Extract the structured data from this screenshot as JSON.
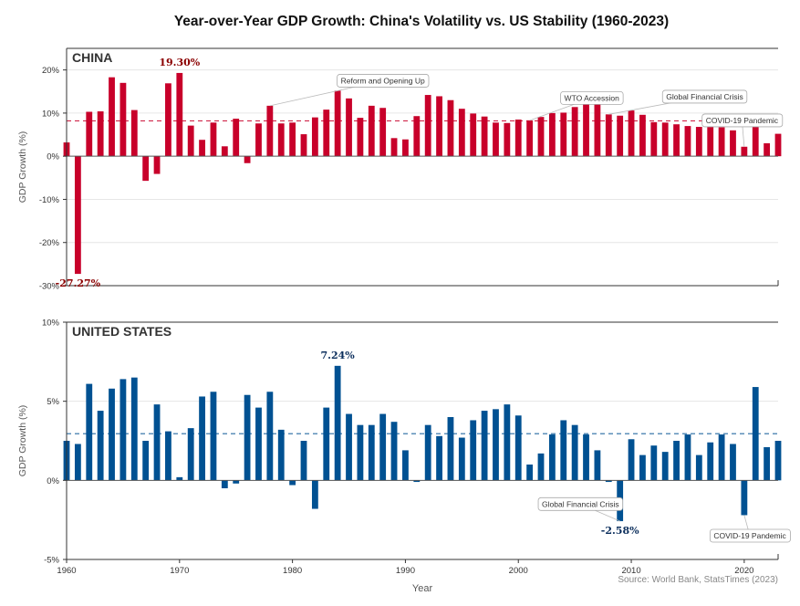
{
  "page_title": "Year-over-Year GDP Growth: China's Volatility vs. US Stability (1960-2023)",
  "source_note": "Source: World Bank, StatsTimes (2023)",
  "colors": {
    "china": "#C8002A",
    "us": "#005192",
    "grid": "#e6e6e6",
    "axis": "#333333"
  },
  "chart_data": [
    {
      "type": "bar",
      "panel_label": "CHINA",
      "ylabel": "GDP Growth (%)",
      "xlabel": "",
      "ylim": [
        -30,
        25
      ],
      "yticks": [
        -30,
        -20,
        -10,
        0,
        10,
        20
      ],
      "ytick_labels": [
        "-30%",
        "-20%",
        "-10%",
        "0%",
        "10%",
        "20%"
      ],
      "x_range": [
        1960,
        2023
      ],
      "grid": true,
      "mean_line": 8.2,
      "series": [
        {
          "x": [
            1960,
            1961,
            1962,
            1963,
            1964,
            1965,
            1966,
            1967,
            1968,
            1969,
            1970,
            1971,
            1972,
            1973,
            1974,
            1975,
            1976,
            1977,
            1978,
            1979,
            1980,
            1981,
            1982,
            1983,
            1984,
            1985,
            1986,
            1987,
            1988,
            1989,
            1990,
            1991,
            1992,
            1993,
            1994,
            1995,
            1996,
            1997,
            1998,
            1999,
            2000,
            2001,
            2002,
            2003,
            2004,
            2005,
            2006,
            2007,
            2008,
            2009,
            2010,
            2011,
            2012,
            2013,
            2014,
            2015,
            2016,
            2017,
            2018,
            2019,
            2020,
            2021,
            2022,
            2023
          ],
          "values": [
            3.2,
            -27.27,
            10.3,
            10.4,
            18.3,
            17.0,
            10.7,
            -5.7,
            -4.1,
            16.9,
            19.3,
            7.1,
            3.8,
            7.8,
            2.3,
            8.7,
            -1.6,
            7.6,
            11.7,
            7.6,
            7.8,
            5.1,
            9.0,
            10.8,
            15.2,
            13.4,
            8.9,
            11.7,
            11.2,
            4.2,
            3.9,
            9.3,
            14.2,
            13.9,
            13.0,
            11.0,
            9.9,
            9.2,
            7.8,
            7.7,
            8.5,
            8.3,
            9.1,
            10.0,
            10.1,
            11.4,
            12.7,
            14.2,
            9.7,
            9.4,
            10.6,
            9.6,
            7.9,
            7.8,
            7.4,
            7.0,
            6.8,
            6.9,
            6.7,
            6.0,
            2.2,
            8.4,
            3.0,
            5.2
          ]
        }
      ],
      "data_labels": [
        {
          "x": 1970,
          "text": "19.30%"
        },
        {
          "x": 1961,
          "text": "-27.27%"
        }
      ],
      "annotations": [
        {
          "text": "Reform and Opening Up",
          "x": 1978,
          "y": 11.7,
          "box_x": 1988,
          "box_y": 17.5
        },
        {
          "text": "WTO Accession",
          "x": 2001,
          "y": 8.3,
          "box_x": 2006.5,
          "box_y": 13.5
        },
        {
          "text": "Global Financial Crisis",
          "x": 2008,
          "y": 9.7,
          "box_x": 2016.5,
          "box_y": 13.8
        },
        {
          "text": "COVID-19 Pandemic",
          "x": 2020,
          "y": 2.2,
          "box_x": 2019.8,
          "box_y": 8.3
        }
      ]
    },
    {
      "type": "bar",
      "panel_label": "UNITED STATES",
      "ylabel": "GDP Growth (%)",
      "xlabel": "Year",
      "ylim": [
        -5,
        10
      ],
      "yticks": [
        -5,
        0,
        5,
        10
      ],
      "ytick_labels": [
        "-5%",
        "0%",
        "5%",
        "10%"
      ],
      "xticks": [
        1960,
        1970,
        1980,
        1990,
        2000,
        2010,
        2020
      ],
      "xtick_labels": [
        "1960",
        "1970",
        "1980",
        "1990",
        "2000",
        "2010",
        "2020"
      ],
      "x_range": [
        1960,
        2023
      ],
      "grid": true,
      "mean_line": 2.95,
      "series": [
        {
          "x": [
            1960,
            1961,
            1962,
            1963,
            1964,
            1965,
            1966,
            1967,
            1968,
            1969,
            1970,
            1971,
            1972,
            1973,
            1974,
            1975,
            1976,
            1977,
            1978,
            1979,
            1980,
            1981,
            1982,
            1983,
            1984,
            1985,
            1986,
            1987,
            1988,
            1989,
            1990,
            1991,
            1992,
            1993,
            1994,
            1995,
            1996,
            1997,
            1998,
            1999,
            2000,
            2001,
            2002,
            2003,
            2004,
            2005,
            2006,
            2007,
            2008,
            2009,
            2010,
            2011,
            2012,
            2013,
            2014,
            2015,
            2016,
            2017,
            2018,
            2019,
            2020,
            2021,
            2022,
            2023
          ],
          "values": [
            2.5,
            2.3,
            6.1,
            4.4,
            5.8,
            6.4,
            6.5,
            2.5,
            4.8,
            3.1,
            0.2,
            3.3,
            5.3,
            5.6,
            -0.5,
            -0.2,
            5.4,
            4.6,
            5.6,
            3.2,
            -0.3,
            2.5,
            -1.8,
            4.6,
            7.24,
            4.2,
            3.5,
            3.5,
            4.2,
            3.7,
            1.9,
            -0.1,
            3.5,
            2.8,
            4.0,
            2.7,
            3.8,
            4.4,
            4.5,
            4.8,
            4.1,
            1.0,
            1.7,
            2.9,
            3.8,
            3.5,
            2.9,
            1.9,
            -0.1,
            -2.58,
            2.6,
            1.6,
            2.2,
            1.8,
            2.5,
            2.9,
            1.6,
            2.4,
            2.9,
            2.3,
            -2.2,
            5.9,
            2.1,
            2.5
          ]
        }
      ],
      "data_labels": [
        {
          "x": 1984,
          "text": "7.24%"
        },
        {
          "x": 2009,
          "text": "-2.58%"
        }
      ],
      "annotations": [
        {
          "text": "Global Financial Crisis",
          "x": 2009,
          "y": -2.58,
          "box_x": 2005.5,
          "box_y": -1.5
        },
        {
          "text": "COVID-19 Pandemic",
          "x": 2020,
          "y": -2.2,
          "box_x": 2020.5,
          "box_y": -3.5
        }
      ]
    }
  ]
}
